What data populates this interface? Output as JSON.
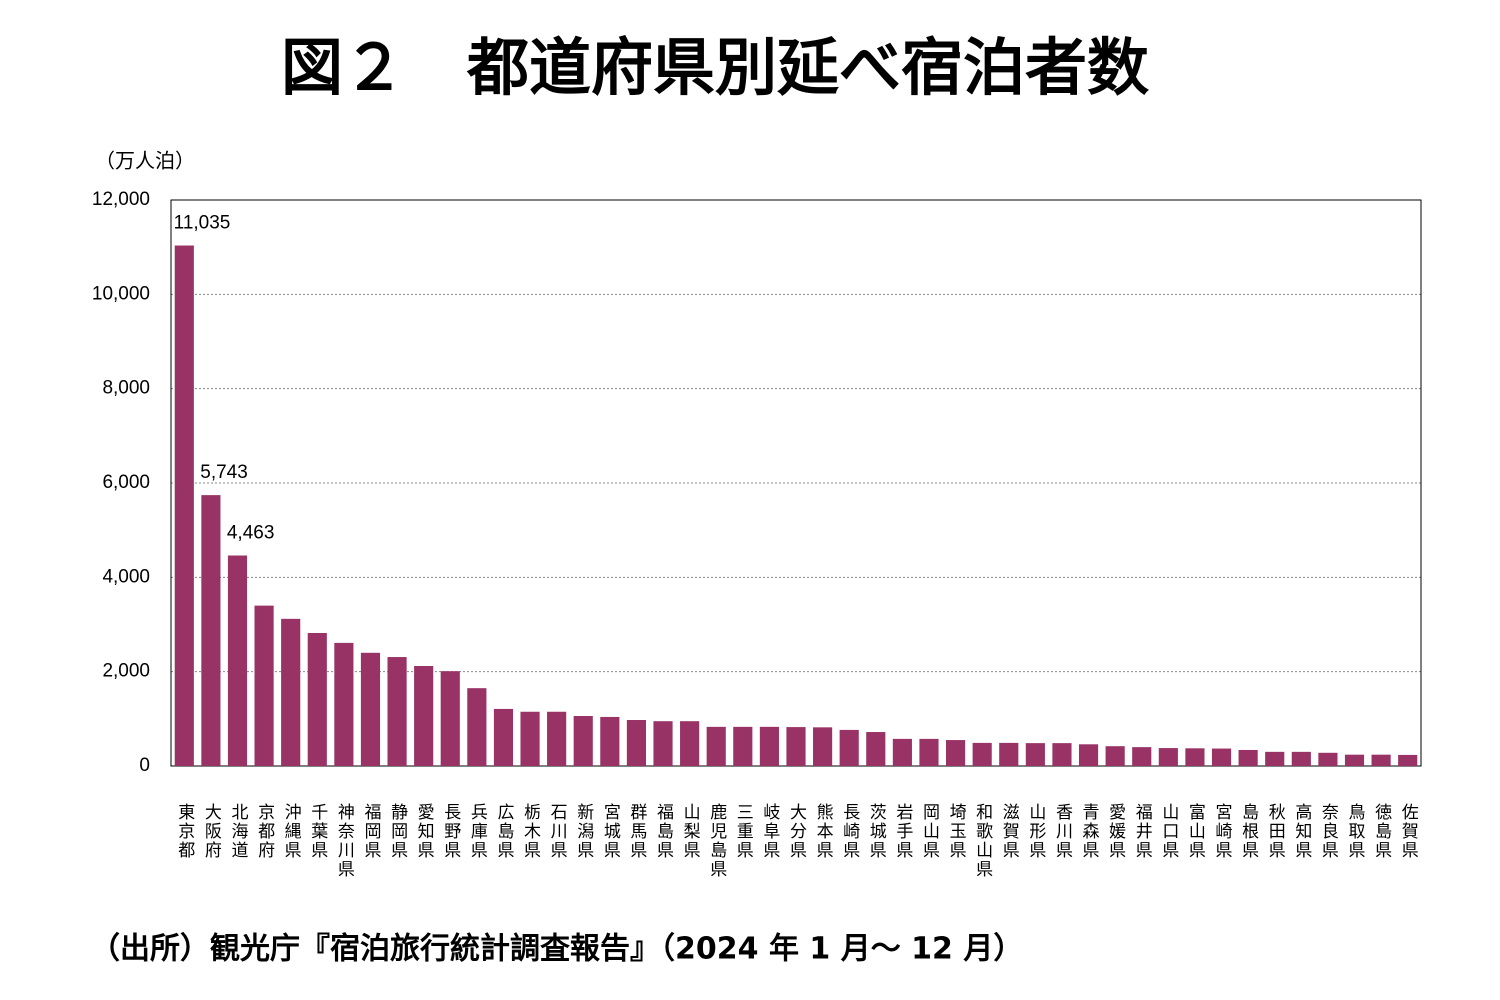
{
  "chart_data": {
    "type": "bar",
    "title": "図２　都道府県別延べ宿泊者数",
    "y_label": "（万人泊）",
    "source": "（出所）観光庁『宿泊旅行統計調査報告』（2024 年 1 月～ 12 月）",
    "categories": [
      "東京都",
      "大阪府",
      "北海道",
      "京都府",
      "沖縄県",
      "千葉県",
      "神奈川県",
      "福岡県",
      "静岡県",
      "愛知県",
      "長野県",
      "兵庫県",
      "広島県",
      "栃木県",
      "石川県",
      "新潟県",
      "宮城県",
      "群馬県",
      "福島県",
      "山梨県",
      "鹿児島県",
      "三重県",
      "岐阜県",
      "大分県",
      "熊本県",
      "長崎県",
      "茨城県",
      "岩手県",
      "岡山県",
      "埼玉県",
      "和歌山県",
      "滋賀県",
      "山形県",
      "香川県",
      "青森県",
      "愛媛県",
      "福井県",
      "山口県",
      "富山県",
      "宮崎県",
      "島根県",
      "秋田県",
      "高知県",
      "奈良県",
      "鳥取県",
      "徳島県",
      "佐賀県"
    ],
    "values": [
      11035,
      5743,
      4463,
      3400,
      3120,
      2820,
      2610,
      2400,
      2310,
      2120,
      2010,
      1650,
      1210,
      1150,
      1150,
      1060,
      1040,
      975,
      950,
      950,
      830,
      830,
      830,
      825,
      820,
      765,
      720,
      575,
      575,
      550,
      490,
      490,
      485,
      485,
      460,
      420,
      400,
      380,
      375,
      370,
      340,
      300,
      300,
      280,
      240,
      240,
      235
    ],
    "value_labels": [
      "11,035",
      "5,743",
      "4,463",
      null,
      null,
      null,
      null,
      null,
      null,
      null,
      null,
      null,
      null,
      null,
      null,
      null,
      null,
      null,
      null,
      null,
      null,
      null,
      null,
      null,
      null,
      null,
      null,
      null,
      null,
      null,
      null,
      null,
      null,
      null,
      null,
      null,
      null,
      null,
      null,
      null,
      null,
      null,
      null,
      null,
      null,
      null,
      null
    ],
    "color": "#993366",
    "ylim": [
      0,
      12000
    ],
    "yticks": [
      0,
      {
        "value": 2000,
        "label": "2,000"
      },
      {
        "value": 4000,
        "label": "4,000"
      },
      {
        "value": 6000,
        "label": "6,000"
      },
      {
        "value": 8000,
        "label": "8,000"
      },
      {
        "value": 10000,
        "label": "10,000"
      },
      {
        "value": 12000,
        "label": "12,000"
      }
    ],
    "grid": true
  }
}
